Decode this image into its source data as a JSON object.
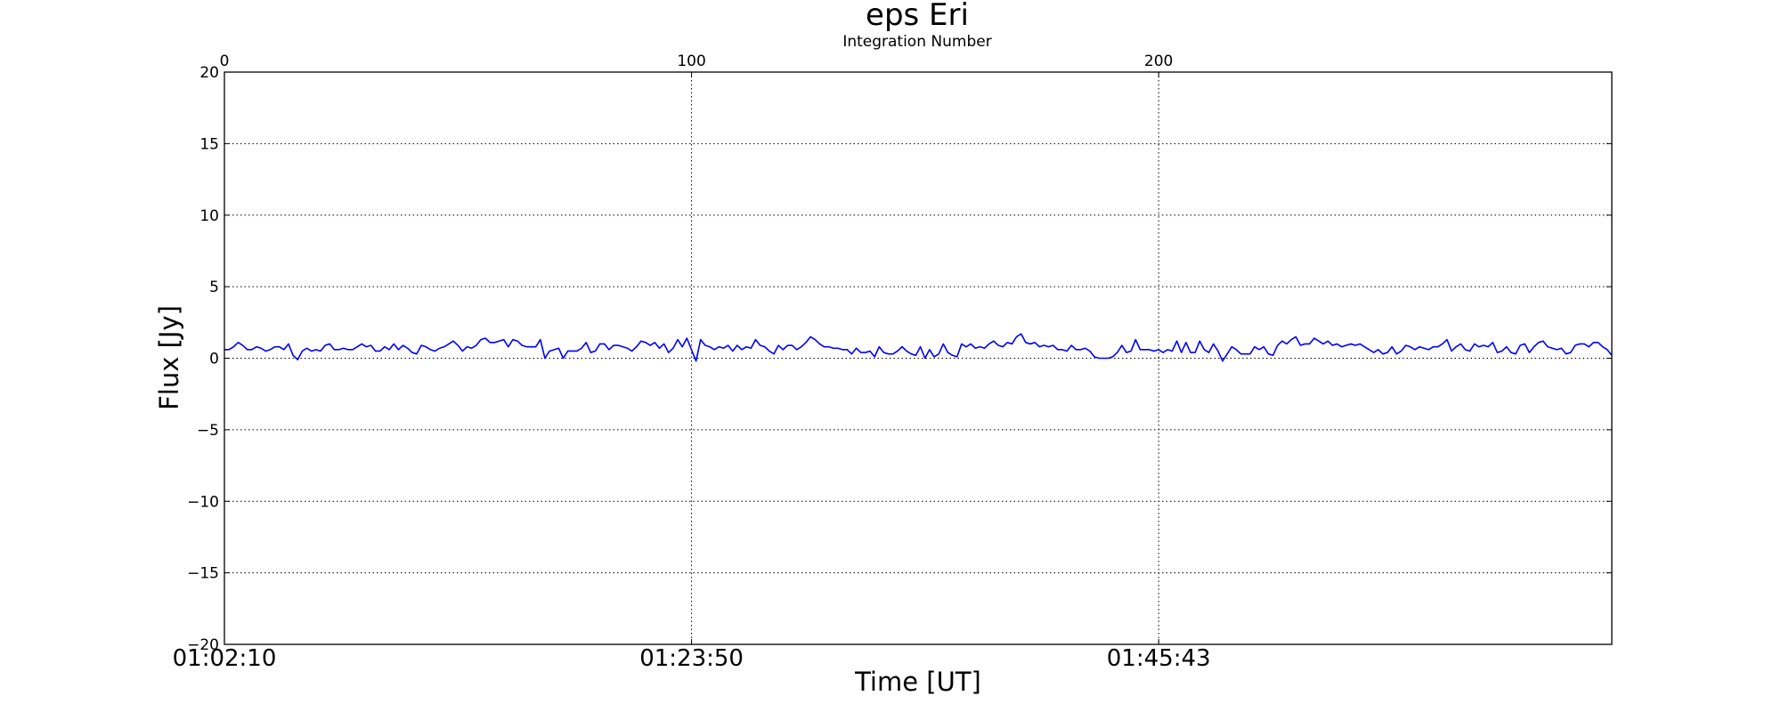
{
  "chart_data": {
    "type": "line",
    "title": "eps Eri",
    "top_axis_label": "Integration Number",
    "xlabel": "Time [UT]",
    "ylabel": "Flux [Jy]",
    "ylim": [
      -20,
      20
    ],
    "y_ticks": [
      20,
      15,
      10,
      5,
      0,
      -5,
      -10,
      -15,
      -20
    ],
    "y_tick_labels": [
      "20",
      "15",
      "10",
      "5",
      "0",
      "−5",
      "−10",
      "−15",
      "−20"
    ],
    "xlim": [
      0,
      297
    ],
    "x_ticks": [
      0,
      100,
      200
    ],
    "top_tick_labels": [
      "0",
      "100",
      "200"
    ],
    "bottom_tick_labels": [
      "01:02:10",
      "01:23:50",
      "01:45:43"
    ],
    "grid": true,
    "line_color": "#0000ff",
    "series": [
      {
        "values": [
          0.6,
          0.6,
          0.8,
          1.1,
          0.9,
          0.6,
          0.6,
          0.8,
          0.7,
          0.5,
          0.6,
          0.8,
          0.8,
          0.6,
          1.0,
          0.2,
          -0.1,
          0.5,
          0.7,
          0.5,
          0.6,
          0.5,
          0.9,
          1.0,
          0.6,
          0.6,
          0.7,
          0.6,
          0.6,
          0.8,
          1.0,
          0.8,
          0.9,
          0.5,
          0.5,
          0.8,
          0.6,
          1.0,
          0.6,
          0.9,
          0.7,
          0.4,
          0.3,
          0.9,
          0.8,
          0.6,
          0.5,
          0.7,
          0.8,
          1.0,
          1.2,
          0.9,
          0.5,
          0.8,
          0.7,
          0.9,
          1.3,
          1.4,
          1.1,
          1.1,
          1.2,
          1.3,
          0.8,
          1.3,
          1.2,
          0.9,
          0.8,
          0.8,
          0.8,
          1.3,
          0.0,
          0.5,
          0.6,
          0.7,
          0.0,
          0.5,
          0.5,
          0.5,
          0.7,
          1.1,
          0.4,
          0.5,
          1.0,
          1.0,
          0.6,
          0.9,
          0.9,
          0.8,
          0.7,
          0.5,
          0.8,
          1.2,
          1.1,
          0.9,
          1.1,
          0.7,
          1.0,
          0.4,
          0.7,
          1.3,
          0.8,
          1.4,
          0.6,
          -0.2,
          1.3,
          0.9,
          0.8,
          0.6,
          0.8,
          0.7,
          0.9,
          0.5,
          0.9,
          0.6,
          0.8,
          0.7,
          1.3,
          0.9,
          0.8,
          0.5,
          0.3,
          0.9,
          0.6,
          0.9,
          0.9,
          0.6,
          0.8,
          1.1,
          1.5,
          1.3,
          1.0,
          0.8,
          0.8,
          0.7,
          0.7,
          0.6,
          0.6,
          0.3,
          0.7,
          0.4,
          0.4,
          0.5,
          0.1,
          0.8,
          0.4,
          0.3,
          0.3,
          0.5,
          0.8,
          0.5,
          0.3,
          0.2,
          0.8,
          0.0,
          0.6,
          0.1,
          0.3,
          1.0,
          0.4,
          0.2,
          0.1,
          1.0,
          0.8,
          1.0,
          0.7,
          0.8,
          0.7,
          1.0,
          1.2,
          0.9,
          0.8,
          1.1,
          1.0,
          1.5,
          1.7,
          1.1,
          1.0,
          1.1,
          0.8,
          0.9,
          0.8,
          0.9,
          0.6,
          0.6,
          0.5,
          0.9,
          0.6,
          0.6,
          0.7,
          0.5,
          0.1,
          0.0,
          0.0,
          0.0,
          0.1,
          0.4,
          0.9,
          0.4,
          0.5,
          1.3,
          0.6,
          0.6,
          0.6,
          0.5,
          0.6,
          0.4,
          0.6,
          0.5,
          1.2,
          0.4,
          1.1,
          0.4,
          0.4,
          1.2,
          0.6,
          0.4,
          1.0,
          0.5,
          -0.2,
          0.3,
          0.8,
          0.6,
          0.3,
          0.3,
          0.3,
          0.8,
          0.6,
          0.8,
          0.3,
          0.2,
          0.9,
          1.2,
          1.0,
          1.3,
          1.5,
          0.9,
          1.0,
          1.0,
          1.4,
          1.2,
          1.0,
          1.2,
          0.9,
          1.0,
          0.8,
          0.9,
          1.0,
          0.9,
          1.0,
          0.8,
          0.6,
          0.4,
          0.6,
          0.3,
          0.4,
          0.8,
          0.3,
          0.5,
          0.9,
          0.8,
          0.6,
          0.8,
          0.7,
          0.6,
          0.8,
          0.8,
          1.0,
          1.3,
          0.5,
          0.8,
          1.0,
          0.6,
          0.5,
          1.0,
          0.8,
          0.9,
          0.8,
          1.1,
          0.4,
          0.5,
          0.8,
          0.4,
          0.3,
          0.9,
          1.0,
          0.4,
          0.8,
          1.1,
          1.2,
          0.8,
          0.7,
          0.6,
          0.7,
          0.3,
          0.4,
          0.9,
          1.0,
          1.0,
          0.8,
          1.1,
          1.1,
          0.8,
          0.6,
          0.2
        ]
      }
    ]
  }
}
